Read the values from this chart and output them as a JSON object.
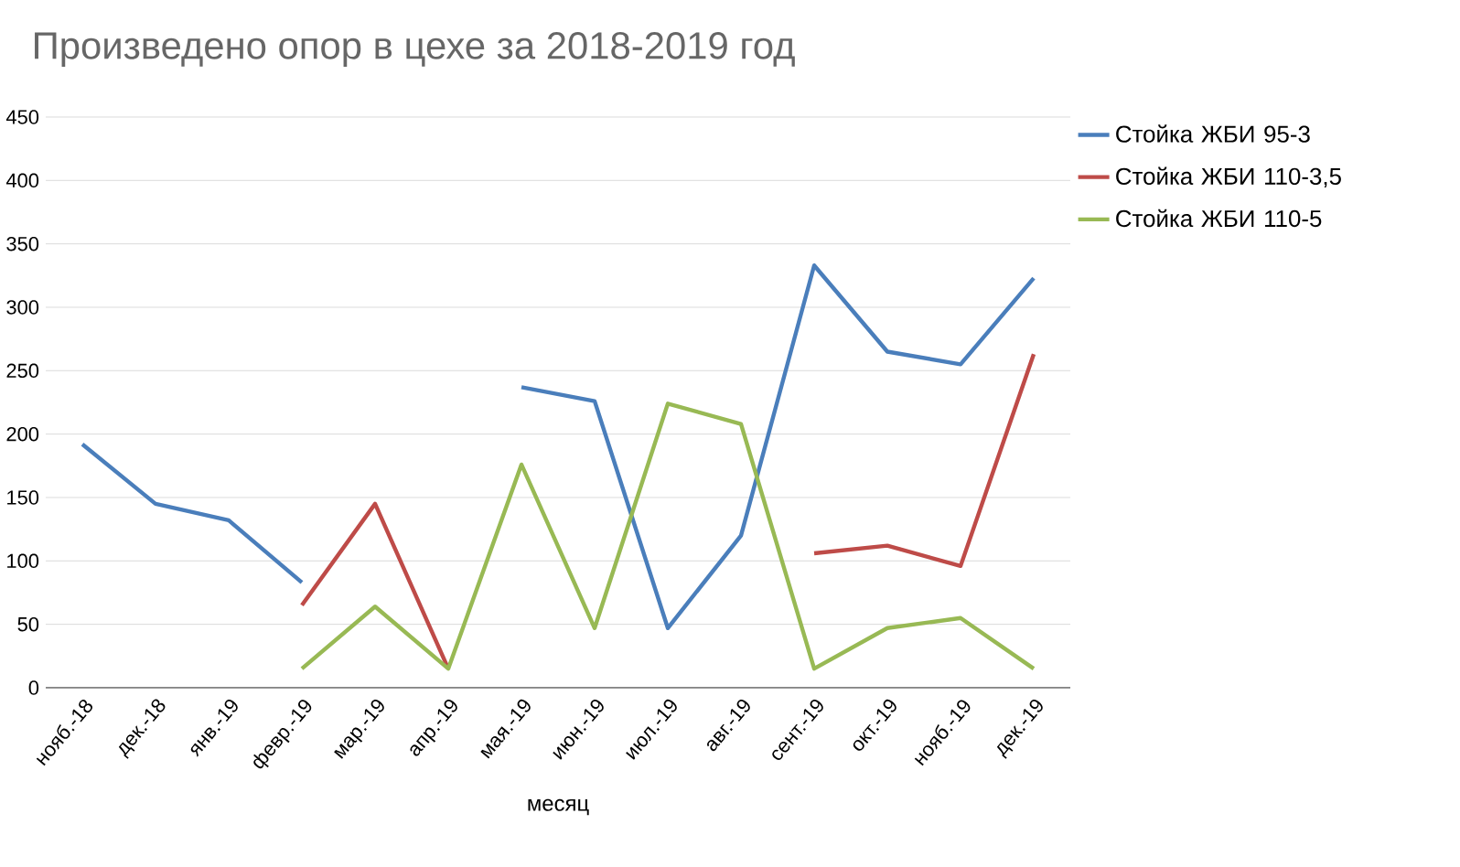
{
  "chart_data": {
    "type": "line",
    "title": "Произведено опор в цехе за 2018-2019 год",
    "xlabel": "месяц",
    "categories": [
      "нояб.-18",
      "дек.-18",
      "янв.-19",
      "февр.-19",
      "мар.-19",
      "апр.-19",
      "мая.-19",
      "июн.-19",
      "июл.-19",
      "авг.-19",
      "сент.-19",
      "окт.-19",
      "нояб.-19",
      "дек.-19"
    ],
    "series": [
      {
        "name": "Стойка ЖБИ 95-3",
        "color": "#4a7ebb",
        "values": [
          192,
          145,
          132,
          83,
          null,
          null,
          237,
          226,
          47,
          120,
          333,
          265,
          255,
          323
        ]
      },
      {
        "name": "Стойка ЖБИ 110-3,5",
        "color": "#be4b48",
        "values": [
          null,
          null,
          null,
          65,
          145,
          15,
          null,
          null,
          null,
          null,
          106,
          112,
          96,
          263
        ]
      },
      {
        "name": "Стойка ЖБИ 110-5",
        "color": "#98b954",
        "values": [
          null,
          null,
          null,
          15,
          64,
          15,
          176,
          47,
          224,
          208,
          15,
          47,
          55,
          15
        ]
      }
    ],
    "ylim": [
      0,
      450
    ],
    "yticks": [
      0,
      50,
      100,
      150,
      200,
      250,
      300,
      350,
      400,
      450
    ],
    "grid": "y",
    "legend": "right"
  }
}
